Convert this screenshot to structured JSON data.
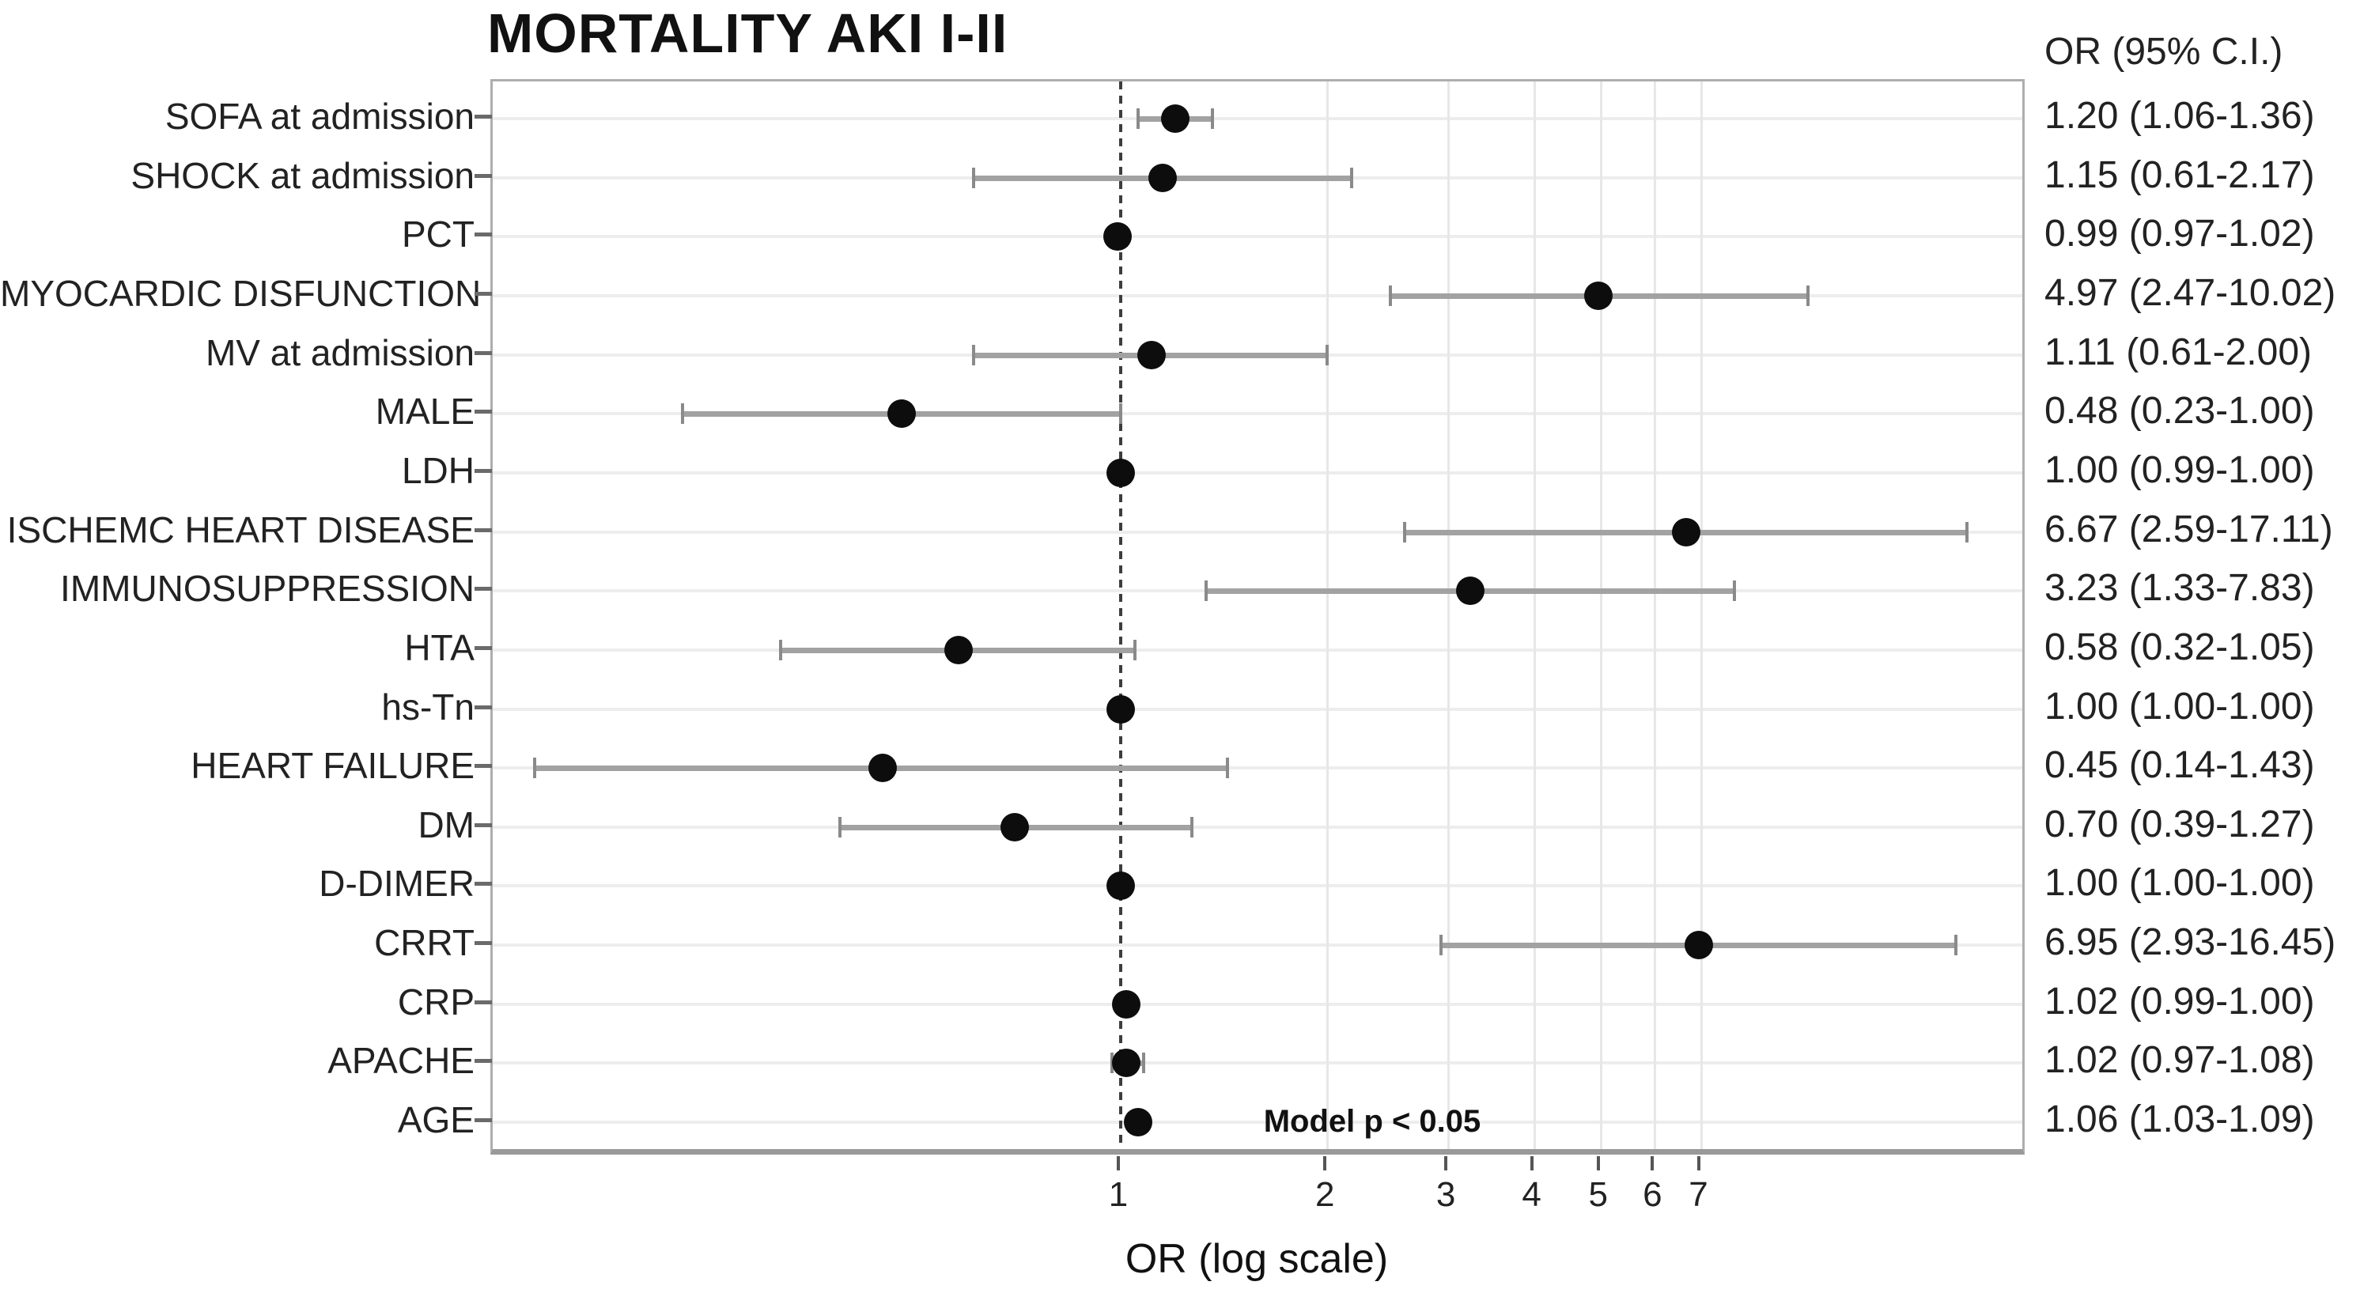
{
  "title": "MORTALITY AKI I-II",
  "or_column_header": "OR (95% C.I.)",
  "x_axis_label": "OR (log scale)",
  "annotation": "Model p < 0.05",
  "colors": {
    "dot": "#0d0d0d",
    "error_bar": "#a2a2a2",
    "frame": "#aeaeae",
    "gridline": "#ededed",
    "reference_line": "#3d3d3d",
    "background": "#ffffff"
  },
  "chart_data": {
    "type": "scatter",
    "variant": "forest-plot",
    "title": "MORTALITY AKI I-II",
    "xlabel": "OR (log scale)",
    "x_scale": "log",
    "x_ticks": [
      1,
      2,
      3,
      4,
      5,
      6,
      7
    ],
    "x_range": [
      0.12,
      20.9
    ],
    "reference_line_x": 1,
    "grid": "on",
    "value_column_header": "OR (95% C.I.)",
    "annotation": "Model p < 0.05",
    "rows": [
      {
        "label": "SOFA at admission",
        "or": 1.2,
        "lo": 1.06,
        "hi": 1.36,
        "ci_text": "1.20 (1.06-1.36)"
      },
      {
        "label": "SHOCK at admission",
        "or": 1.15,
        "lo": 0.61,
        "hi": 2.17,
        "ci_text": "1.15 (0.61-2.17)"
      },
      {
        "label": "PCT",
        "or": 0.99,
        "lo": 0.97,
        "hi": 1.02,
        "ci_text": "0.99 (0.97-1.02)"
      },
      {
        "label": "MYOCARDIC DISFUNCTION",
        "or": 4.97,
        "lo": 2.47,
        "hi": 10.02,
        "ci_text": "4.97 (2.47-10.02)"
      },
      {
        "label": "MV at admission",
        "or": 1.11,
        "lo": 0.61,
        "hi": 2.0,
        "ci_text": "1.11 (0.61-2.00)"
      },
      {
        "label": "MALE",
        "or": 0.48,
        "lo": 0.23,
        "hi": 1.0,
        "ci_text": "0.48 (0.23-1.00)"
      },
      {
        "label": "LDH",
        "or": 1.0,
        "lo": 0.99,
        "hi": 1.0,
        "ci_text": "1.00 (0.99-1.00)"
      },
      {
        "label": "ISCHEMC HEART DISEASE",
        "or": 6.67,
        "lo": 2.59,
        "hi": 17.11,
        "ci_text": "6.67 (2.59-17.11)"
      },
      {
        "label": "IMMUNOSUPPRESSION",
        "or": 3.23,
        "lo": 1.33,
        "hi": 7.83,
        "ci_text": "3.23 (1.33-7.83)"
      },
      {
        "label": "HTA",
        "or": 0.58,
        "lo": 0.32,
        "hi": 1.05,
        "ci_text": "0.58 (0.32-1.05)"
      },
      {
        "label": "hs-Tn",
        "or": 1.0,
        "lo": 1.0,
        "hi": 1.0,
        "ci_text": "1.00 (1.00-1.00)"
      },
      {
        "label": "HEART FAILURE",
        "or": 0.45,
        "lo": 0.14,
        "hi": 1.43,
        "ci_text": "0.45 (0.14-1.43)"
      },
      {
        "label": "DM",
        "or": 0.7,
        "lo": 0.39,
        "hi": 1.27,
        "ci_text": "0.70 (0.39-1.27)"
      },
      {
        "label": "D-DIMER",
        "or": 1.0,
        "lo": 1.0,
        "hi": 1.0,
        "ci_text": "1.00 (1.00-1.00)"
      },
      {
        "label": "CRRT",
        "or": 6.95,
        "lo": 2.93,
        "hi": 16.45,
        "ci_text": "6.95 (2.93-16.45)"
      },
      {
        "label": "CRP",
        "or": 1.02,
        "lo": 0.99,
        "hi": 1.0,
        "ci_text": "1.02 (0.99-1.00)"
      },
      {
        "label": "APACHE",
        "or": 1.02,
        "lo": 0.97,
        "hi": 1.08,
        "ci_text": "1.02 (0.97-1.08)"
      },
      {
        "label": "AGE",
        "or": 1.06,
        "lo": 1.03,
        "hi": 1.09,
        "ci_text": "1.06 (1.03-1.09)"
      }
    ]
  }
}
